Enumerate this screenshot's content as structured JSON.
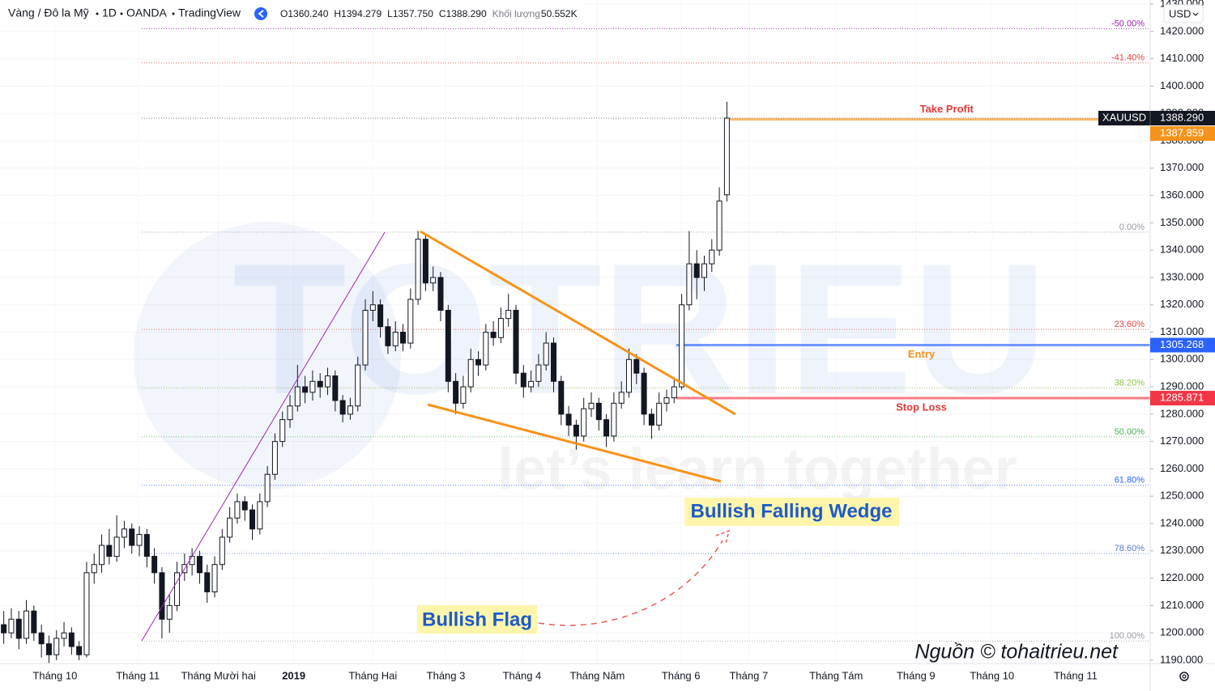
{
  "chart_data": {
    "type": "candlestick",
    "header": {
      "symbol": "Vàng / Đô la Mỹ",
      "interval": "1D",
      "exchange": "OANDA",
      "platform": "TradingView",
      "ohlc": [
        {
          "key": "O",
          "value": "1360.240"
        },
        {
          "key": "H",
          "value": "1394.279"
        },
        {
          "key": "L",
          "value": "1357.750"
        },
        {
          "key": "C",
          "value": "1388.290"
        }
      ],
      "volume_label": "Khối lượng",
      "volume": "50.552K",
      "currency": "USD"
    },
    "watermark": {
      "title": "TOTRIEU",
      "tagline": "let’s learn together"
    },
    "annotations": [
      "Bullish Falling Wedge",
      "Bullish Flag"
    ],
    "source": "Nguồn © tohaitrieu.net",
    "up_color": "#ffffff",
    "down_color": "#131722",
    "border_color": "#131722",
    "x": [
      0,
      1,
      2,
      3,
      4,
      5,
      6,
      7,
      8,
      9,
      10,
      11,
      12,
      13,
      14,
      15,
      16,
      17,
      18,
      19,
      20,
      21,
      22,
      23,
      24,
      25,
      26,
      27,
      28,
      29,
      30,
      31,
      32,
      33,
      34,
      35,
      36,
      37,
      38,
      39,
      40,
      41,
      42,
      43,
      44,
      45,
      46,
      47,
      48,
      49,
      50,
      51,
      52,
      53,
      54,
      55,
      56,
      57,
      58,
      59,
      60,
      61,
      62,
      63,
      64,
      65,
      66,
      67,
      68,
      69,
      70,
      71,
      72,
      73,
      74,
      75,
      76,
      77,
      78,
      79,
      80,
      81,
      82,
      83,
      84,
      85,
      86,
      87,
      88,
      89,
      90,
      91,
      92,
      93,
      94,
      95,
      96
    ],
    "ohlc": [
      [
        1203,
        1208,
        1196,
        1200
      ],
      [
        1200,
        1209,
        1198,
        1205
      ],
      [
        1205,
        1208,
        1194,
        1198
      ],
      [
        1198,
        1212,
        1196,
        1208
      ],
      [
        1208,
        1210,
        1197,
        1200
      ],
      [
        1200,
        1203,
        1191,
        1196
      ],
      [
        1196,
        1199,
        1189,
        1192
      ],
      [
        1192,
        1201,
        1190,
        1198
      ],
      [
        1198,
        1204,
        1195,
        1200
      ],
      [
        1200,
        1202,
        1192,
        1195
      ],
      [
        1195,
        1197,
        1190,
        1192
      ],
      [
        1192,
        1226,
        1191,
        1222
      ],
      [
        1222,
        1229,
        1218,
        1225
      ],
      [
        1225,
        1236,
        1222,
        1232
      ],
      [
        1232,
        1238,
        1225,
        1228
      ],
      [
        1228,
        1243,
        1226,
        1235
      ],
      [
        1235,
        1241,
        1231,
        1238
      ],
      [
        1238,
        1240,
        1229,
        1232
      ],
      [
        1232,
        1239,
        1228,
        1236
      ],
      [
        1236,
        1238,
        1224,
        1228
      ],
      [
        1228,
        1231,
        1218,
        1222
      ],
      [
        1222,
        1224,
        1198,
        1205
      ],
      [
        1205,
        1214,
        1200,
        1210
      ],
      [
        1210,
        1226,
        1208,
        1222
      ],
      [
        1222,
        1229,
        1219,
        1225
      ],
      [
        1225,
        1231,
        1221,
        1228
      ],
      [
        1228,
        1230,
        1218,
        1222
      ],
      [
        1222,
        1225,
        1211,
        1215
      ],
      [
        1215,
        1228,
        1213,
        1225
      ],
      [
        1225,
        1238,
        1223,
        1235
      ],
      [
        1235,
        1246,
        1233,
        1242
      ],
      [
        1242,
        1251,
        1240,
        1248
      ],
      [
        1248,
        1250,
        1241,
        1245
      ],
      [
        1245,
        1247,
        1234,
        1238
      ],
      [
        1238,
        1251,
        1236,
        1248
      ],
      [
        1248,
        1261,
        1246,
        1258
      ],
      [
        1258,
        1273,
        1256,
        1270
      ],
      [
        1270,
        1281,
        1268,
        1278
      ],
      [
        1278,
        1287,
        1275,
        1283
      ],
      [
        1283,
        1298,
        1281,
        1290
      ],
      [
        1290,
        1294,
        1284,
        1288
      ],
      [
        1288,
        1296,
        1285,
        1292
      ],
      [
        1292,
        1295,
        1286,
        1290
      ],
      [
        1290,
        1297,
        1287,
        1294
      ],
      [
        1294,
        1296,
        1281,
        1285
      ],
      [
        1285,
        1287,
        1277,
        1280
      ],
      [
        1280,
        1286,
        1278,
        1283
      ],
      [
        1283,
        1301,
        1281,
        1298
      ],
      [
        1298,
        1322,
        1296,
        1318
      ],
      [
        1318,
        1325,
        1314,
        1320
      ],
      [
        1320,
        1322,
        1308,
        1312
      ],
      [
        1312,
        1315,
        1302,
        1305
      ],
      [
        1305,
        1314,
        1303,
        1310
      ],
      [
        1310,
        1313,
        1303,
        1306
      ],
      [
        1306,
        1326,
        1304,
        1322
      ],
      [
        1322,
        1347,
        1320,
        1344
      ],
      [
        1344,
        1346,
        1325,
        1328
      ],
      [
        1328,
        1334,
        1325,
        1330
      ],
      [
        1330,
        1332,
        1314,
        1318
      ],
      [
        1318,
        1320,
        1288,
        1292
      ],
      [
        1292,
        1295,
        1280,
        1284
      ],
      [
        1284,
        1294,
        1282,
        1290
      ],
      [
        1290,
        1304,
        1288,
        1300
      ],
      [
        1300,
        1303,
        1294,
        1298
      ],
      [
        1298,
        1313,
        1296,
        1310
      ],
      [
        1310,
        1314,
        1305,
        1308
      ],
      [
        1308,
        1319,
        1306,
        1315
      ],
      [
        1315,
        1324,
        1312,
        1318
      ],
      [
        1318,
        1320,
        1291,
        1295
      ],
      [
        1295,
        1298,
        1286,
        1290
      ],
      [
        1290,
        1296,
        1288,
        1292
      ],
      [
        1292,
        1302,
        1290,
        1298
      ],
      [
        1298,
        1310,
        1296,
        1306
      ],
      [
        1306,
        1308,
        1288,
        1292
      ],
      [
        1292,
        1294,
        1276,
        1280
      ],
      [
        1280,
        1283,
        1272,
        1276
      ],
      [
        1276,
        1278,
        1267,
        1272
      ],
      [
        1272,
        1286,
        1270,
        1282
      ],
      [
        1282,
        1288,
        1279,
        1284
      ],
      [
        1284,
        1286,
        1274,
        1278
      ],
      [
        1278,
        1280,
        1268,
        1272
      ],
      [
        1272,
        1288,
        1270,
        1284
      ],
      [
        1284,
        1292,
        1282,
        1288
      ],
      [
        1288,
        1304,
        1286,
        1300
      ],
      [
        1300,
        1302,
        1291,
        1295
      ],
      [
        1295,
        1297,
        1276,
        1280
      ],
      [
        1280,
        1282,
        1271,
        1276
      ],
      [
        1276,
        1288,
        1274,
        1284
      ],
      [
        1284,
        1289,
        1281,
        1286
      ],
      [
        1286,
        1293,
        1284,
        1290
      ],
      [
        1290,
        1324,
        1289,
        1320
      ],
      [
        1320,
        1347,
        1318,
        1335
      ],
      [
        1335,
        1340,
        1322,
        1330
      ],
      [
        1330,
        1338,
        1325,
        1335
      ],
      [
        1335,
        1344,
        1332,
        1340
      ],
      [
        1340,
        1363,
        1338,
        1358
      ],
      [
        1360.24,
        1394.279,
        1357.75,
        1388.29
      ]
    ],
    "xlim": [
      -0.5,
      152.2
    ],
    "xticks": [
      {
        "value": 6.8,
        "label": "Tháng 10"
      },
      {
        "value": 17.8,
        "label": "Tháng 11"
      },
      {
        "value": 28.5,
        "label": "Tháng Mười hai"
      },
      {
        "value": 38.5,
        "label": "2019",
        "bold": true
      },
      {
        "value": 49.0,
        "label": "Tháng Hai"
      },
      {
        "value": 58.7,
        "label": "Tháng 3"
      },
      {
        "value": 68.8,
        "label": "Tháng 4"
      },
      {
        "value": 78.8,
        "label": "Tháng Năm"
      },
      {
        "value": 89.9,
        "label": "Tháng 6"
      },
      {
        "value": 98.9,
        "label": "Tháng 7"
      },
      {
        "value": 110.5,
        "label": "Tháng Tám"
      },
      {
        "value": 121.1,
        "label": "Tháng 9"
      },
      {
        "value": 131.2,
        "label": "Tháng 10"
      },
      {
        "value": 142.3,
        "label": "Tháng 11"
      }
    ],
    "ylim": [
      1188.8,
      1431.5
    ],
    "yticks": [
      {
        "value": 1190,
        "label": "1190.000"
      },
      {
        "value": 1200,
        "label": "1200.000"
      },
      {
        "value": 1210,
        "label": "1210.000"
      },
      {
        "value": 1220,
        "label": "1220.000"
      },
      {
        "value": 1230,
        "label": "1230.000"
      },
      {
        "value": 1240,
        "label": "1240.000"
      },
      {
        "value": 1250,
        "label": "1250.000"
      },
      {
        "value": 1260,
        "label": "1260.000"
      },
      {
        "value": 1270,
        "label": "1270.000"
      },
      {
        "value": 1280,
        "label": "1280.000"
      },
      {
        "value": 1290,
        "label": "1290.000"
      },
      {
        "value": 1300,
        "label": "1300.000"
      },
      {
        "value": 1310,
        "label": "1310.000"
      },
      {
        "value": 1320,
        "label": "1320.000"
      },
      {
        "value": 1330,
        "label": "1330.000"
      },
      {
        "value": 1340,
        "label": "1340.000"
      },
      {
        "value": 1350,
        "label": "1350.000"
      },
      {
        "value": 1360,
        "label": "1360.000"
      },
      {
        "value": 1370,
        "label": "1370.000"
      },
      {
        "value": 1380,
        "label": "1380.000"
      },
      {
        "value": 1390,
        "label": "1390.000"
      },
      {
        "value": 1400,
        "label": "1400.000"
      },
      {
        "value": 1410,
        "label": "1410.000"
      },
      {
        "value": 1420,
        "label": "1420.000"
      },
      {
        "value": 1430,
        "label": "1430.000"
      }
    ],
    "grid": true,
    "fib_levels": [
      {
        "label": "-50.00%",
        "value": 1421,
        "color": "#9c27b0"
      },
      {
        "label": "-41.40%",
        "value": 1408.5,
        "color": "#e0483f"
      },
      {
        "label": "0.00%",
        "value": 1346.6,
        "color": "#9598a1"
      },
      {
        "label": "23.60%",
        "value": 1311,
        "color": "#e0483f"
      },
      {
        "label": "38.20%",
        "value": 1289.5,
        "color": "#8bc34a"
      },
      {
        "label": "50.00%",
        "value": 1271.7,
        "color": "#4caf50"
      },
      {
        "label": "61.80%",
        "value": 1254,
        "color": "#2962ff"
      },
      {
        "label": "78.60%",
        "value": 1229,
        "color": "#5b7bd5"
      },
      {
        "label": "100.00%",
        "value": 1197,
        "color": "#9598a1"
      }
    ],
    "last_price": {
      "symbol": "XAUUSD",
      "label": "1388.290"
    },
    "levels": [
      {
        "name": "Take Profit",
        "value": 1387.859,
        "value_label": "1387.859",
        "color": "#f7931a",
        "text_color": "#e53935"
      },
      {
        "name": "Entry",
        "value": 1305.268,
        "value_label": "1305.268",
        "color": "#2962ff",
        "text_color": "#f7931a"
      },
      {
        "name": "Stop Loss",
        "value": 1285.871,
        "value_label": "1285.871",
        "color": "#f23645",
        "text_color": "#e53935"
      }
    ]
  }
}
